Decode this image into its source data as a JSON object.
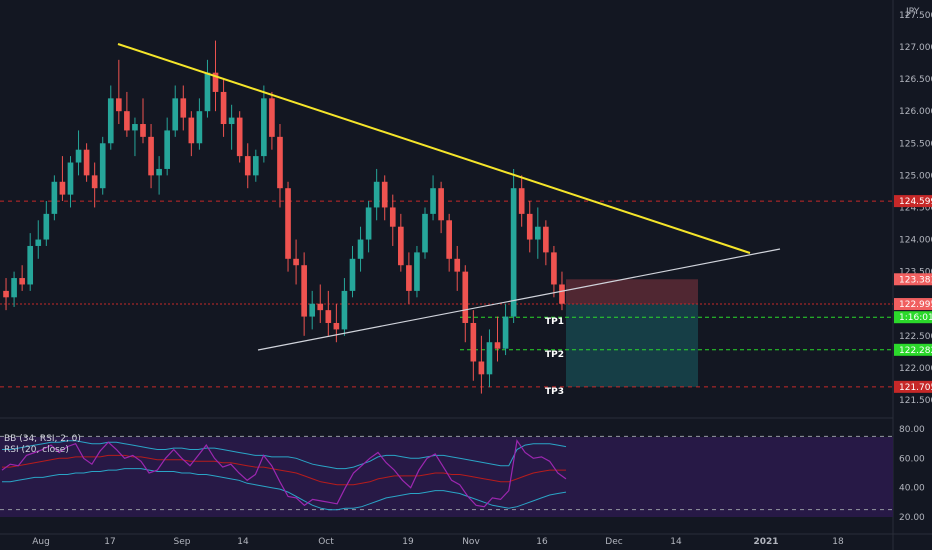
{
  "currency": "JPY",
  "indicator": {
    "bb_label": "BB (34, RSI, 2, 0)",
    "rsi_label": "RSI (20, close)"
  },
  "colors": {
    "background": "#131722",
    "bull": "#26a69a",
    "bear": "#ef5350",
    "trendline_upper": "#f5e52a",
    "trendline_lower": "#d1d4dc",
    "rsi_line": "#9c27b0",
    "bb_band": "#2aa4c6",
    "bb_basis": "#b71c1c",
    "indicator_bg": "#2a1a4a",
    "stop_zone": "#5c2a35",
    "target_zone": "#17434a",
    "tp_line": "#2bd92b",
    "red_level": "#c62828"
  },
  "chart_data": {
    "type": "candlestick",
    "symbol_currency": "JPY",
    "price_axis": {
      "ylim": [
        121.4,
        127.6
      ],
      "ticks": [
        "121.500",
        "122.000",
        "122.500",
        "123.000",
        "123.500",
        "124.000",
        "124.500",
        "125.000",
        "125.500",
        "126.000",
        "126.500",
        "127.000",
        "127.500"
      ]
    },
    "time_axis": {
      "ticks": [
        "Aug",
        "17",
        "Sep",
        "14",
        "Oct",
        "19",
        "Nov",
        "16",
        "Dec",
        "14",
        "2021",
        "18"
      ]
    },
    "trendlines": [
      {
        "name": "upper",
        "from": {
          "time": "Aug 17",
          "price": 127.05
        },
        "to": {
          "time": "Nov 26",
          "price": 123.8
        }
      },
      {
        "name": "lower",
        "from": {
          "time": "Sep 21",
          "price": 122.3
        },
        "to": {
          "time": "Nov 28",
          "price": 123.85
        }
      }
    ],
    "levels": [
      {
        "label": "124.599",
        "price": 124.599,
        "style": "red-dashed"
      },
      {
        "label": "123.381",
        "price": 123.381,
        "style": "red-box"
      },
      {
        "label": "122.995",
        "price": 122.995,
        "style": "red-dotted"
      },
      {
        "label": "TP1",
        "price": 122.79,
        "style": "green-dashed",
        "axis_label": "1:16:01"
      },
      {
        "label": "TP2",
        "price": 122.282,
        "style": "green-dashed",
        "axis_label": "122.282"
      },
      {
        "label": "TP3",
        "price": 121.705,
        "style": "red-dashed",
        "axis_label": "121.705"
      }
    ],
    "position": {
      "entry": 122.995,
      "stop": 123.381,
      "target": 121.705
    },
    "candles": [
      [
        123.2,
        123.4,
        122.9,
        123.1
      ],
      [
        123.1,
        123.5,
        122.95,
        123.4
      ],
      [
        123.4,
        123.6,
        123.2,
        123.3
      ],
      [
        123.3,
        124.1,
        123.2,
        123.9
      ],
      [
        123.9,
        124.3,
        123.7,
        124.0
      ],
      [
        124.0,
        124.6,
        123.9,
        124.4
      ],
      [
        124.4,
        125.0,
        124.3,
        124.9
      ],
      [
        124.9,
        125.3,
        124.6,
        124.7
      ],
      [
        124.7,
        125.3,
        124.5,
        125.2
      ],
      [
        125.2,
        125.7,
        125.0,
        125.4
      ],
      [
        125.4,
        125.5,
        124.9,
        125.0
      ],
      [
        125.0,
        125.2,
        124.5,
        124.8
      ],
      [
        124.8,
        125.6,
        124.7,
        125.5
      ],
      [
        125.5,
        126.4,
        125.4,
        126.2
      ],
      [
        126.2,
        126.8,
        125.8,
        126.0
      ],
      [
        126.0,
        126.3,
        125.6,
        125.7
      ],
      [
        125.7,
        125.9,
        125.3,
        125.8
      ],
      [
        125.8,
        126.2,
        125.5,
        125.6
      ],
      [
        125.6,
        125.8,
        124.8,
        125.0
      ],
      [
        125.0,
        125.3,
        124.7,
        125.1
      ],
      [
        125.1,
        125.9,
        125.0,
        125.7
      ],
      [
        125.7,
        126.4,
        125.6,
        126.2
      ],
      [
        126.2,
        126.4,
        125.7,
        125.9
      ],
      [
        125.9,
        126.0,
        125.3,
        125.5
      ],
      [
        125.5,
        126.2,
        125.4,
        126.0
      ],
      [
        126.0,
        126.8,
        125.9,
        126.6
      ],
      [
        126.6,
        127.1,
        126.0,
        126.3
      ],
      [
        126.3,
        126.5,
        125.6,
        125.8
      ],
      [
        125.8,
        126.1,
        125.4,
        125.9
      ],
      [
        125.9,
        126.0,
        125.2,
        125.3
      ],
      [
        125.3,
        125.5,
        124.8,
        125.0
      ],
      [
        125.0,
        125.4,
        124.9,
        125.3
      ],
      [
        125.3,
        126.4,
        125.2,
        126.2
      ],
      [
        126.2,
        126.3,
        125.4,
        125.6
      ],
      [
        125.6,
        125.8,
        124.5,
        124.8
      ],
      [
        124.8,
        124.9,
        123.5,
        123.7
      ],
      [
        123.7,
        124.0,
        123.3,
        123.6
      ],
      [
        123.6,
        123.8,
        122.5,
        122.8
      ],
      [
        122.8,
        123.2,
        122.6,
        123.0
      ],
      [
        123.0,
        123.3,
        122.7,
        122.9
      ],
      [
        122.9,
        123.2,
        122.5,
        122.7
      ],
      [
        122.7,
        123.0,
        122.4,
        122.6
      ],
      [
        122.6,
        123.4,
        122.5,
        123.2
      ],
      [
        123.2,
        123.9,
        123.1,
        123.7
      ],
      [
        123.7,
        124.2,
        123.5,
        124.0
      ],
      [
        124.0,
        124.6,
        123.8,
        124.5
      ],
      [
        124.5,
        125.1,
        124.3,
        124.9
      ],
      [
        124.9,
        125.0,
        124.3,
        124.5
      ],
      [
        124.5,
        124.7,
        123.9,
        124.2
      ],
      [
        124.2,
        124.4,
        123.5,
        123.6
      ],
      [
        123.6,
        123.8,
        123.0,
        123.2
      ],
      [
        123.2,
        123.9,
        123.1,
        123.8
      ],
      [
        123.8,
        124.5,
        123.7,
        124.4
      ],
      [
        124.4,
        125.0,
        124.3,
        124.8
      ],
      [
        124.8,
        124.9,
        124.1,
        124.3
      ],
      [
        124.3,
        124.4,
        123.5,
        123.7
      ],
      [
        123.7,
        123.9,
        123.2,
        123.5
      ],
      [
        123.5,
        123.6,
        122.4,
        122.7
      ],
      [
        122.7,
        122.9,
        121.8,
        122.1
      ],
      [
        122.1,
        122.5,
        121.6,
        121.9
      ],
      [
        121.9,
        122.6,
        121.7,
        122.4
      ],
      [
        122.4,
        122.8,
        122.1,
        122.3
      ],
      [
        122.3,
        123.0,
        122.2,
        122.8
      ],
      [
        122.8,
        125.1,
        122.7,
        124.8
      ],
      [
        124.8,
        125.0,
        124.2,
        124.4
      ],
      [
        124.4,
        124.6,
        123.8,
        124.0
      ],
      [
        124.0,
        124.5,
        123.7,
        124.2
      ],
      [
        124.2,
        124.3,
        123.6,
        123.8
      ],
      [
        123.8,
        123.9,
        123.1,
        123.3
      ],
      [
        123.3,
        123.5,
        122.9,
        123.0
      ]
    ],
    "rsi": {
      "ylim": [
        20,
        80
      ],
      "ticks": [
        "20.00",
        "40.00",
        "60.00",
        "80.00"
      ],
      "bands": [
        25,
        75
      ],
      "values": [
        52,
        56,
        55,
        62,
        64,
        66,
        69,
        64,
        68,
        70,
        60,
        56,
        65,
        71,
        66,
        60,
        62,
        58,
        50,
        52,
        60,
        66,
        60,
        55,
        62,
        69,
        60,
        54,
        56,
        50,
        45,
        49,
        62,
        55,
        44,
        34,
        33,
        28,
        32,
        31,
        30,
        29,
        40,
        50,
        55,
        60,
        64,
        57,
        52,
        45,
        40,
        52,
        60,
        63,
        54,
        45,
        42,
        34,
        28,
        27,
        33,
        32,
        38,
        72,
        64,
        60,
        61,
        58,
        50,
        46
      ],
      "upper": [
        66,
        66,
        67,
        68,
        69,
        70,
        71,
        71,
        72,
        72,
        71,
        70,
        70,
        71,
        71,
        70,
        69,
        68,
        67,
        66,
        66,
        67,
        67,
        66,
        66,
        67,
        67,
        66,
        65,
        64,
        63,
        62,
        62,
        61,
        61,
        61,
        60,
        58,
        56,
        55,
        54,
        53,
        53,
        54,
        56,
        58,
        61,
        62,
        62,
        61,
        60,
        60,
        61,
        62,
        62,
        61,
        60,
        59,
        58,
        57,
        56,
        55,
        55,
        66,
        69,
        70,
        70,
        70,
        69,
        68
      ],
      "basis": [
        54,
        54,
        55,
        56,
        57,
        58,
        59,
        60,
        60,
        61,
        61,
        61,
        61,
        62,
        62,
        62,
        61,
        61,
        60,
        59,
        59,
        59,
        59,
        58,
        58,
        58,
        58,
        57,
        57,
        56,
        55,
        54,
        54,
        53,
        52,
        51,
        50,
        48,
        46,
        44,
        43,
        42,
        42,
        42,
        43,
        44,
        46,
        47,
        48,
        48,
        48,
        48,
        49,
        50,
        50,
        49,
        49,
        48,
        47,
        46,
        45,
        44,
        44,
        46,
        48,
        50,
        51,
        52,
        52,
        52
      ],
      "lower": [
        44,
        44,
        45,
        46,
        47,
        47,
        48,
        49,
        49,
        50,
        50,
        51,
        51,
        52,
        52,
        53,
        53,
        53,
        52,
        51,
        51,
        51,
        50,
        50,
        49,
        49,
        48,
        47,
        46,
        45,
        43,
        42,
        41,
        40,
        39,
        37,
        34,
        31,
        28,
        26,
        25,
        25,
        26,
        26,
        27,
        29,
        31,
        33,
        34,
        35,
        36,
        36,
        37,
        38,
        38,
        37,
        36,
        34,
        32,
        30,
        28,
        27,
        26,
        27,
        29,
        31,
        33,
        35,
        36,
        37
      ]
    }
  }
}
